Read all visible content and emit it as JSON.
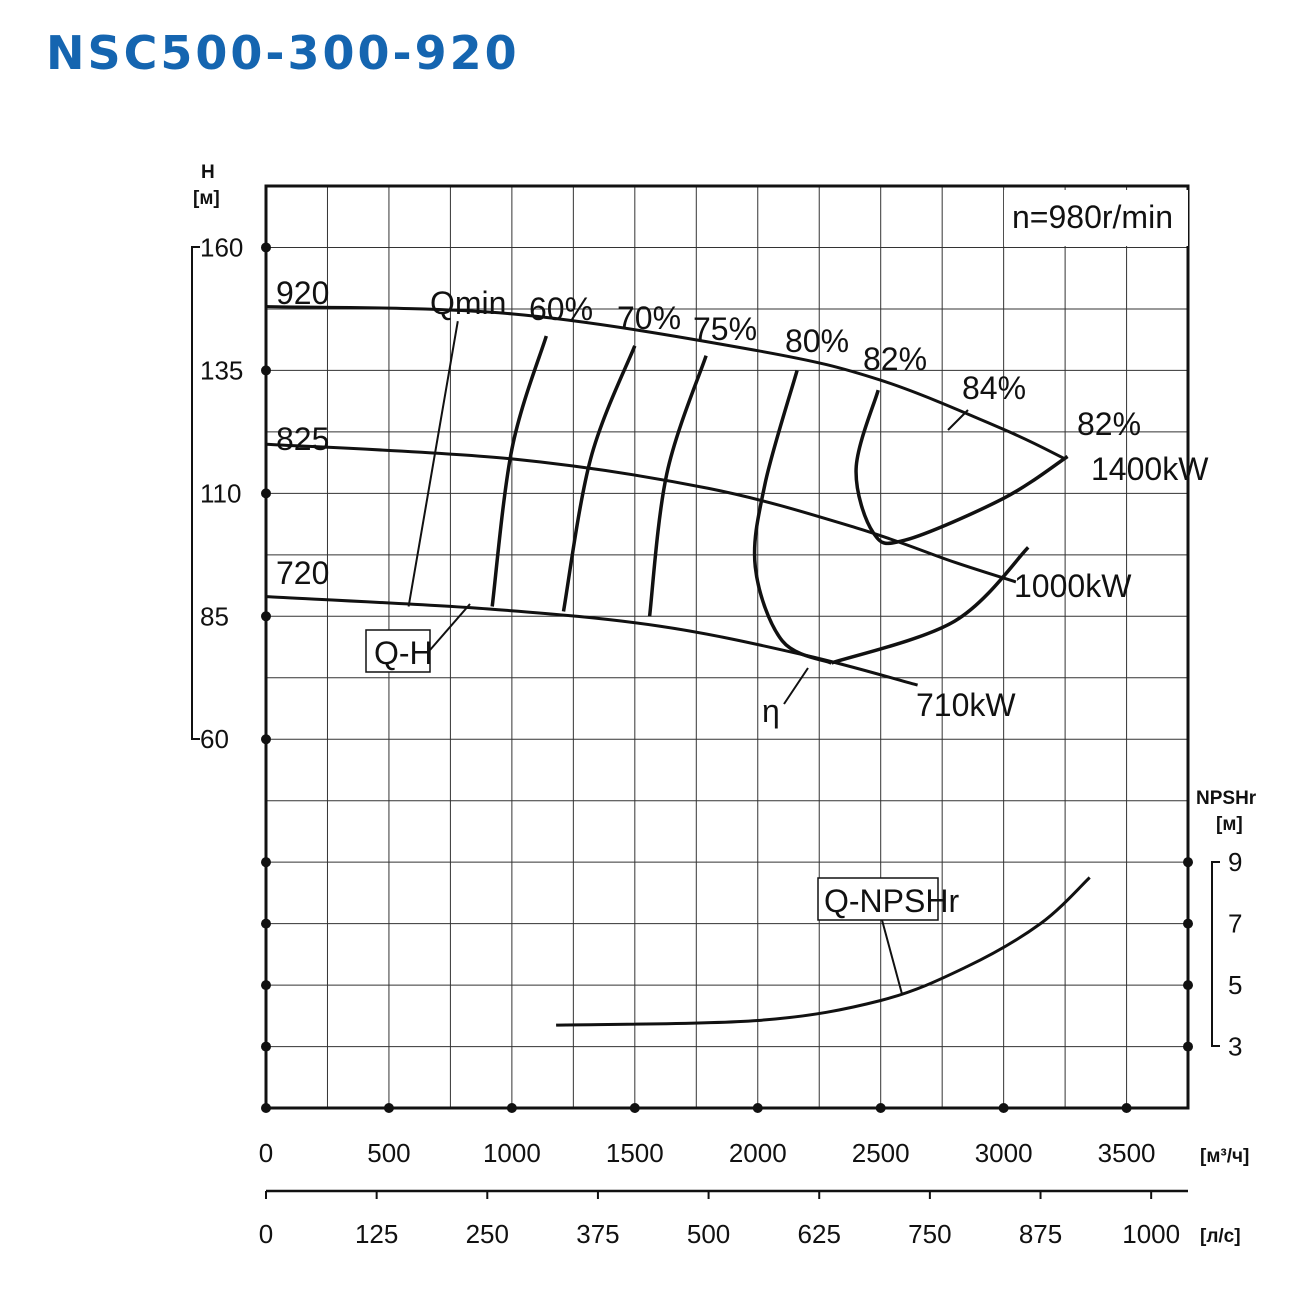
{
  "header": {
    "title": "NSC500-300-920",
    "title_color": "#1565b0"
  },
  "chart_data": {
    "type": "line",
    "speed_label": "n=980r/min",
    "y_left": {
      "label": "H",
      "unit": "[м]",
      "ticks": [
        "160",
        "135",
        "110",
        "85",
        "60"
      ],
      "range": [
        60,
        160
      ]
    },
    "y_right": {
      "label": "NPSHr",
      "unit": "[м]",
      "ticks": [
        "9",
        "7",
        "5",
        "3"
      ],
      "range": [
        3,
        9
      ]
    },
    "x_primary": {
      "unit": "[м³/ч]",
      "ticks": [
        "0",
        "500",
        "1000",
        "1500",
        "2000",
        "2500",
        "3000",
        "3500"
      ],
      "range": [
        0,
        3750
      ]
    },
    "x_secondary": {
      "unit": "[л/с]",
      "ticks": [
        "0",
        "125",
        "250",
        "375",
        "500",
        "625",
        "750",
        "875",
        "1000"
      ],
      "range": [
        0,
        1042
      ]
    },
    "grid": true,
    "qh_curves": [
      {
        "impeller": "920",
        "power": "1400kW",
        "points": [
          [
            0,
            148
          ],
          [
            1000,
            146.5
          ],
          [
            2000,
            139
          ],
          [
            2500,
            133
          ],
          [
            3000,
            123
          ],
          [
            3250,
            117
          ]
        ]
      },
      {
        "impeller": "825",
        "power": "1000kW",
        "points": [
          [
            0,
            120
          ],
          [
            1000,
            117
          ],
          [
            1800,
            111
          ],
          [
            2400,
            103
          ],
          [
            2800,
            96
          ],
          [
            3050,
            92
          ]
        ]
      },
      {
        "impeller": "720",
        "power": "710kW",
        "points": [
          [
            0,
            89
          ],
          [
            900,
            86.5
          ],
          [
            1600,
            83
          ],
          [
            2200,
            77
          ],
          [
            2650,
            71
          ]
        ]
      }
    ],
    "efficiency_curves": [
      {
        "label": "60%",
        "points": [
          [
            1140,
            142
          ],
          [
            1000,
            119
          ],
          [
            920,
            87
          ]
        ]
      },
      {
        "label": "70%",
        "points": [
          [
            1500,
            140
          ],
          [
            1320,
            117
          ],
          [
            1210,
            86
          ]
        ]
      },
      {
        "label": "75%",
        "points": [
          [
            1790,
            138
          ],
          [
            1630,
            114
          ],
          [
            1560,
            85
          ]
        ]
      },
      {
        "label": "80%",
        "points": [
          [
            2160,
            135
          ],
          [
            2030,
            112
          ],
          [
            1990,
            95
          ],
          [
            2100,
            80
          ],
          [
            2300,
            75.5
          ]
        ]
      },
      {
        "label": "82%",
        "points": [
          [
            2490,
            131
          ],
          [
            2400,
            115
          ],
          [
            2470,
            102
          ],
          [
            2600,
            100.5
          ],
          [
            3000,
            109
          ],
          [
            3260,
            117.5
          ]
        ]
      },
      {
        "label": "82%",
        "points": [
          [
            2300,
            75.5
          ],
          [
            2800,
            84
          ],
          [
            3100,
            99
          ]
        ]
      },
      {
        "label": "84%",
        "points": []
      }
    ],
    "qmin_line": {
      "label": "Qmin",
      "points": [
        [
          780,
          145
        ],
        [
          580,
          87
        ]
      ]
    },
    "npsh_curve": {
      "label": "Q-NPSHr",
      "points": [
        [
          1180,
          3.7
        ],
        [
          2000,
          3.85
        ],
        [
          2500,
          4.5
        ],
        [
          2850,
          5.6
        ],
        [
          3150,
          7
        ],
        [
          3350,
          8.5
        ]
      ]
    },
    "annotations": {
      "qh": "Q-H",
      "eta": "η"
    }
  }
}
